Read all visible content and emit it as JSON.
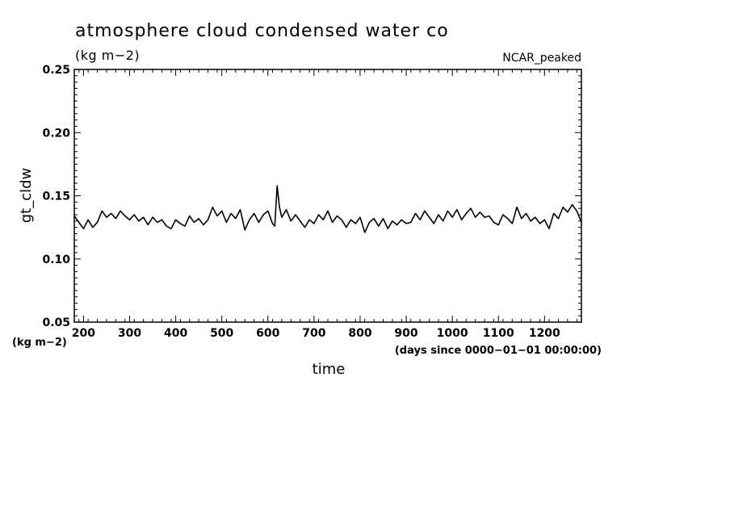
{
  "chart_data": {
    "type": "line",
    "title": "atmosphere cloud condensed water co",
    "units_label": "(kg m−2)",
    "dataset_label": "NCAR_peaked",
    "ylabel": "gt_cldw",
    "y_units_label": "(kg m−2)",
    "xlabel": "time",
    "x_units_label": "(days since 0000−01−01 00:00:00)",
    "xlim": [
      180,
      1280
    ],
    "ylim": [
      0.05,
      0.25
    ],
    "x_ticks": [
      200,
      300,
      400,
      500,
      600,
      700,
      800,
      900,
      1000,
      1100,
      1200
    ],
    "x_tick_labels": [
      "200",
      "300",
      "400",
      "500",
      "600",
      "700",
      "800",
      "900",
      "1000",
      "1100",
      "1200"
    ],
    "y_ticks": [
      0.05,
      0.1,
      0.15,
      0.2,
      0.25
    ],
    "y_tick_labels": [
      "0.05",
      "0.10",
      "0.15",
      "0.20",
      "0.25"
    ],
    "series": [
      {
        "name": "gt_cldw",
        "x": [
          180,
          190,
          200,
          210,
          220,
          230,
          240,
          250,
          260,
          270,
          280,
          290,
          300,
          310,
          320,
          330,
          340,
          350,
          360,
          370,
          380,
          390,
          400,
          410,
          420,
          430,
          440,
          450,
          460,
          470,
          480,
          490,
          500,
          510,
          520,
          530,
          540,
          550,
          560,
          570,
          580,
          590,
          600,
          610,
          615,
          620,
          625,
          630,
          640,
          650,
          660,
          670,
          680,
          690,
          700,
          710,
          720,
          730,
          740,
          750,
          760,
          770,
          780,
          790,
          800,
          810,
          820,
          830,
          840,
          850,
          860,
          870,
          880,
          890,
          900,
          910,
          920,
          930,
          940,
          950,
          960,
          970,
          980,
          990,
          1000,
          1010,
          1020,
          1030,
          1040,
          1050,
          1060,
          1070,
          1080,
          1090,
          1100,
          1110,
          1120,
          1130,
          1140,
          1150,
          1160,
          1170,
          1180,
          1190,
          1200,
          1210,
          1220,
          1230,
          1240,
          1250,
          1260,
          1270,
          1280
        ],
        "values": [
          0.134,
          0.129,
          0.124,
          0.131,
          0.125,
          0.129,
          0.138,
          0.133,
          0.136,
          0.132,
          0.138,
          0.134,
          0.131,
          0.135,
          0.13,
          0.133,
          0.127,
          0.133,
          0.129,
          0.131,
          0.126,
          0.124,
          0.131,
          0.128,
          0.126,
          0.134,
          0.129,
          0.132,
          0.127,
          0.131,
          0.141,
          0.134,
          0.138,
          0.129,
          0.136,
          0.132,
          0.139,
          0.123,
          0.131,
          0.136,
          0.129,
          0.135,
          0.138,
          0.128,
          0.126,
          0.158,
          0.141,
          0.133,
          0.139,
          0.13,
          0.135,
          0.13,
          0.125,
          0.131,
          0.128,
          0.135,
          0.131,
          0.138,
          0.129,
          0.134,
          0.131,
          0.125,
          0.131,
          0.128,
          0.133,
          0.121,
          0.129,
          0.132,
          0.126,
          0.132,
          0.124,
          0.13,
          0.127,
          0.131,
          0.128,
          0.129,
          0.136,
          0.131,
          0.138,
          0.133,
          0.128,
          0.135,
          0.13,
          0.138,
          0.133,
          0.139,
          0.131,
          0.136,
          0.14,
          0.133,
          0.137,
          0.133,
          0.134,
          0.129,
          0.127,
          0.135,
          0.132,
          0.128,
          0.141,
          0.132,
          0.136,
          0.13,
          0.133,
          0.128,
          0.131,
          0.124,
          0.136,
          0.132,
          0.141,
          0.137,
          0.143,
          0.138,
          0.129
        ]
      }
    ]
  }
}
